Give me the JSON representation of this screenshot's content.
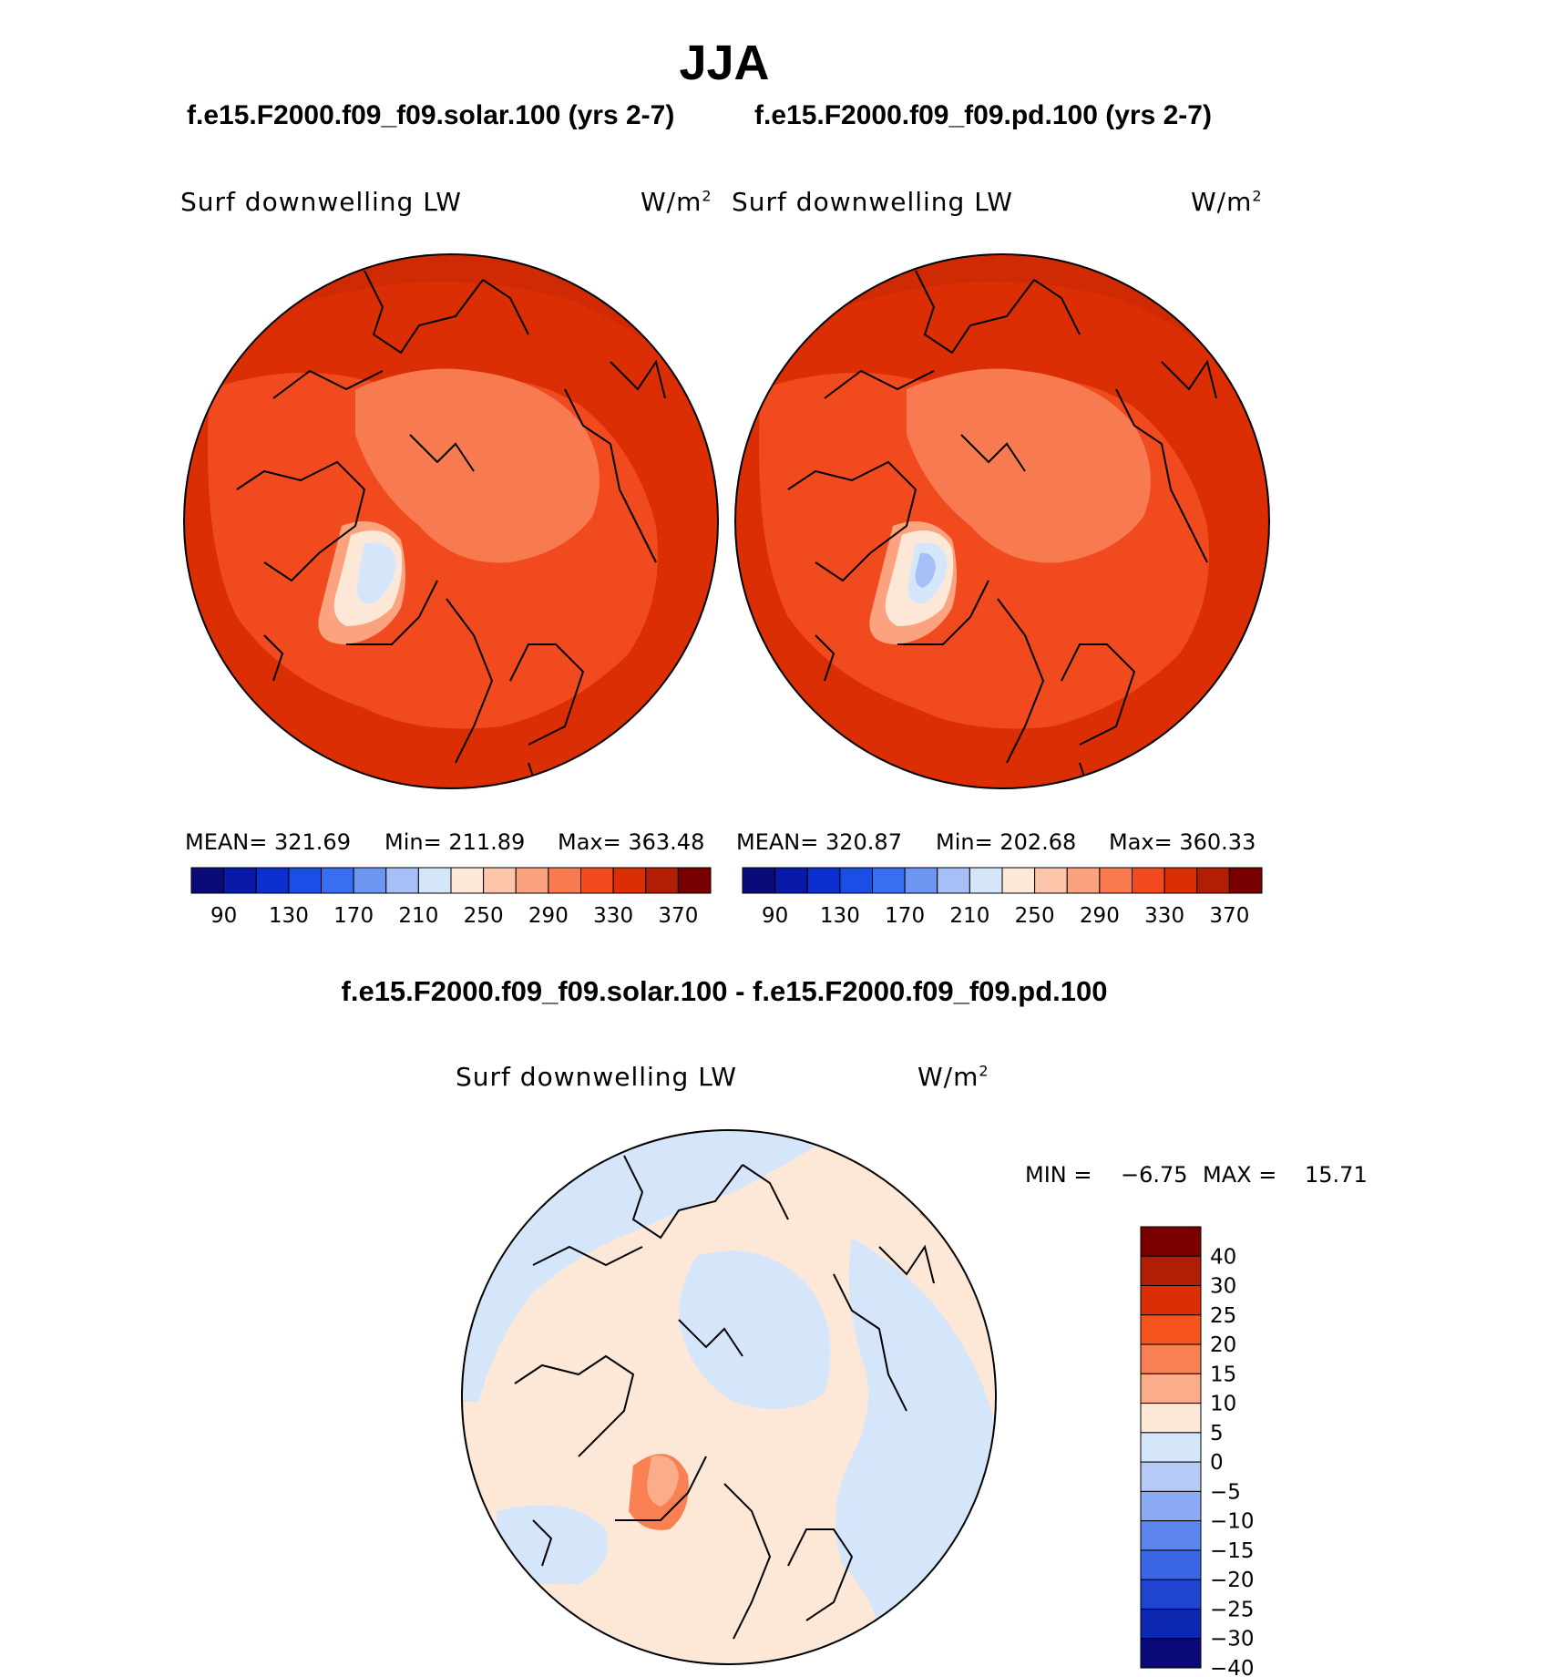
{
  "title": "JJA",
  "case_titles": {
    "left": "f.e15.F2000.f09_f09.solar.100 (yrs 2-7)",
    "right": "f.e15.F2000.f09_f09.pd.100 (yrs 2-7)"
  },
  "panels": [
    {
      "variable": "Surf downwelling LW",
      "units": "W/m",
      "units_exp": "2",
      "mean": "MEAN=  321.69",
      "min": "Min=  211.89",
      "max": "Max=  363.48"
    },
    {
      "variable": "Surf downwelling LW",
      "units": "W/m",
      "units_exp": "2",
      "mean": "MEAN=  320.87",
      "min": "Min=  202.68",
      "max": "Max=  360.33"
    }
  ],
  "abs_colorbar": {
    "colors": [
      "#0a0a78",
      "#0a1aa8",
      "#0c30d0",
      "#1a4ee6",
      "#3a6ef0",
      "#6d95f2",
      "#a6bff6",
      "#d6e6fa",
      "#fde8d8",
      "#fcc4a8",
      "#fba27e",
      "#f77a50",
      "#f04a1e",
      "#dc2e05",
      "#b01e05",
      "#780000"
    ],
    "tick_labels": [
      "90",
      "130",
      "170",
      "210",
      "250",
      "290",
      "330",
      "370"
    ]
  },
  "diff": {
    "title": "f.e15.F2000.f09_f09.solar.100 - f.e15.F2000.f09_f09.pd.100",
    "variable": "Surf downwelling LW",
    "units": "W/m",
    "units_exp": "2",
    "min_label": "MIN =",
    "min_value": "−6.75",
    "max_label": "MAX =",
    "max_value": "15.71",
    "colorbar": {
      "colors_top_to_bottom": [
        "#7a0000",
        "#b01e05",
        "#dc2e05",
        "#f5541e",
        "#f88052",
        "#fbac88",
        "#fde8d8",
        "#d6e6fa",
        "#b6caf6",
        "#8aaaf4",
        "#5c86ee",
        "#3a66e6",
        "#1e44d0",
        "#0c28b0",
        "#0a0a78"
      ],
      "tick_labels": [
        "40",
        "30",
        "25",
        "20",
        "15",
        "10",
        "5",
        "0",
        "−5",
        "−10",
        "−15",
        "−20",
        "−25",
        "−30",
        "−40"
      ]
    }
  }
}
